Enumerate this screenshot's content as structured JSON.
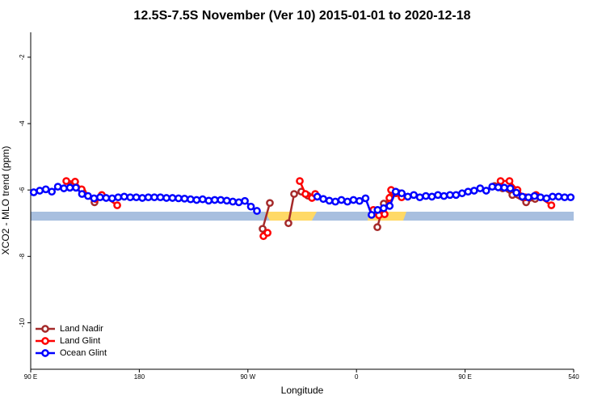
{
  "chart_data": {
    "type": "line",
    "title": "12.5S-7.5S November (Ver 10)   2015-01-01 to 2020-12-18",
    "x_label": "Longitude",
    "y_label": "XCO2 - MLO trend (ppm)",
    "xlim": [
      90,
      540
    ],
    "ylim": [
      -11.4,
      -1.25
    ],
    "xticks": [
      {
        "value": 90,
        "label": "90 E"
      },
      180,
      {
        "value": 270,
        "label": "90 W"
      },
      {
        "value": 360,
        "label": "0"
      },
      {
        "value": 450,
        "label": "90 E"
      },
      540
    ],
    "yticks": [
      -2,
      -4,
      -6,
      -8,
      -10
    ],
    "legend": "bottom-left",
    "series": [
      {
        "name": "Land Nadir",
        "color": "#a52a2a",
        "x": [
          123.5,
          132.9,
          142.9,
          212,
          282.2,
          288.2,
          296,
          303.6,
          308.3,
          314.3,
          319.7,
          324.4,
          350,
          377.3,
          382.6,
          388,
          395.4,
          435,
          474.4,
          481.1,
          489.2,
          500.6,
          508
        ],
        "values": [
          -5.88,
          -6.05,
          -6.37,
          null,
          -7.17,
          -6.39,
          null,
          -7.0,
          -6.12,
          -6.05,
          -6.17,
          -6.2,
          null,
          -7.12,
          -6.41,
          -6.22,
          -6.1,
          null,
          -5.88,
          -5.95,
          -6.15,
          -6.37,
          -6.27
        ]
      },
      {
        "name": "Land Glint",
        "color": "#ff0000",
        "x": [
          119.5,
          126.8,
          132.2,
          143.6,
          148.9,
          161.7,
          222,
          282.9,
          286.3,
          300,
          313.0,
          317.7,
          323.1,
          325.8,
          350,
          374,
          378.6,
          383.3,
          387.3,
          388.7,
          392.7,
          397.4,
          438,
          479.4,
          486.8,
          493.4,
          500.1,
          508.8,
          521.5
        ],
        "values": [
          -5.73,
          -5.75,
          -5.98,
          -6.27,
          -6.15,
          -6.46,
          null,
          -7.39,
          -7.29,
          null,
          -5.73,
          -6.12,
          -6.24,
          -6.12,
          null,
          -6.6,
          -6.76,
          -6.73,
          -6.24,
          -6.0,
          -6.1,
          -6.22,
          null,
          -5.73,
          -5.73,
          -6.0,
          -6.22,
          -6.15,
          -6.46
        ]
      },
      {
        "name": "Ocean Glint",
        "color": "#0000ff",
        "x": [
          92.5,
          97.5,
          102.5,
          107.5,
          112.5,
          117.5,
          122.5,
          127.5,
          132.5,
          137.5,
          142.5,
          147.5,
          152.5,
          157.5,
          162.5,
          167.5,
          172.5,
          177.5,
          182.5,
          187.5,
          192.5,
          197.5,
          202.5,
          207.5,
          212.5,
          217.5,
          222.5,
          227.5,
          232.5,
          237.5,
          242.5,
          247.5,
          252.5,
          257.5,
          262.5,
          267.5,
          272.5,
          277.5,
          300,
          327.5,
          332.5,
          337.5,
          342.5,
          347.5,
          352.5,
          357.5,
          362.5,
          367.5,
          372.5,
          377.5,
          382.5,
          387.5,
          392.5,
          397.5,
          402.5,
          407.5,
          412.5,
          417.5,
          422.5,
          427.5,
          432.5,
          437.5,
          442.5,
          447.5,
          452.5,
          457.5,
          462.5,
          467.5,
          472.5,
          477.5,
          482.5,
          487.5,
          492.5,
          497.5,
          502.5,
          507.5,
          512.5,
          517.5,
          522.5,
          527.5,
          532.5,
          537.5
        ],
        "values": [
          -6.07,
          -6.02,
          -5.98,
          -6.05,
          -5.9,
          -5.95,
          -5.93,
          -5.93,
          -6.12,
          -6.18,
          -6.25,
          -6.22,
          -6.24,
          -6.25,
          -6.22,
          -6.2,
          -6.22,
          -6.22,
          -6.24,
          -6.22,
          -6.22,
          -6.22,
          -6.24,
          -6.24,
          -6.25,
          -6.26,
          -6.28,
          -6.3,
          -6.28,
          -6.32,
          -6.3,
          -6.3,
          -6.32,
          -6.35,
          -6.37,
          -6.33,
          -6.5,
          -6.63,
          null,
          -6.2,
          -6.27,
          -6.32,
          -6.35,
          -6.3,
          -6.35,
          -6.3,
          -6.33,
          -6.25,
          -6.75,
          -6.6,
          -6.55,
          -6.48,
          -6.05,
          -6.1,
          -6.2,
          -6.15,
          -6.22,
          -6.18,
          -6.2,
          -6.15,
          -6.18,
          -6.15,
          -6.15,
          -6.1,
          -6.05,
          -6.02,
          -5.95,
          -6.02,
          -5.9,
          -5.92,
          -5.93,
          -5.95,
          -6.08,
          -6.2,
          -6.22,
          -6.18,
          -6.22,
          -6.25,
          -6.2,
          -6.2,
          -6.22,
          -6.22
        ]
      }
    ]
  }
}
